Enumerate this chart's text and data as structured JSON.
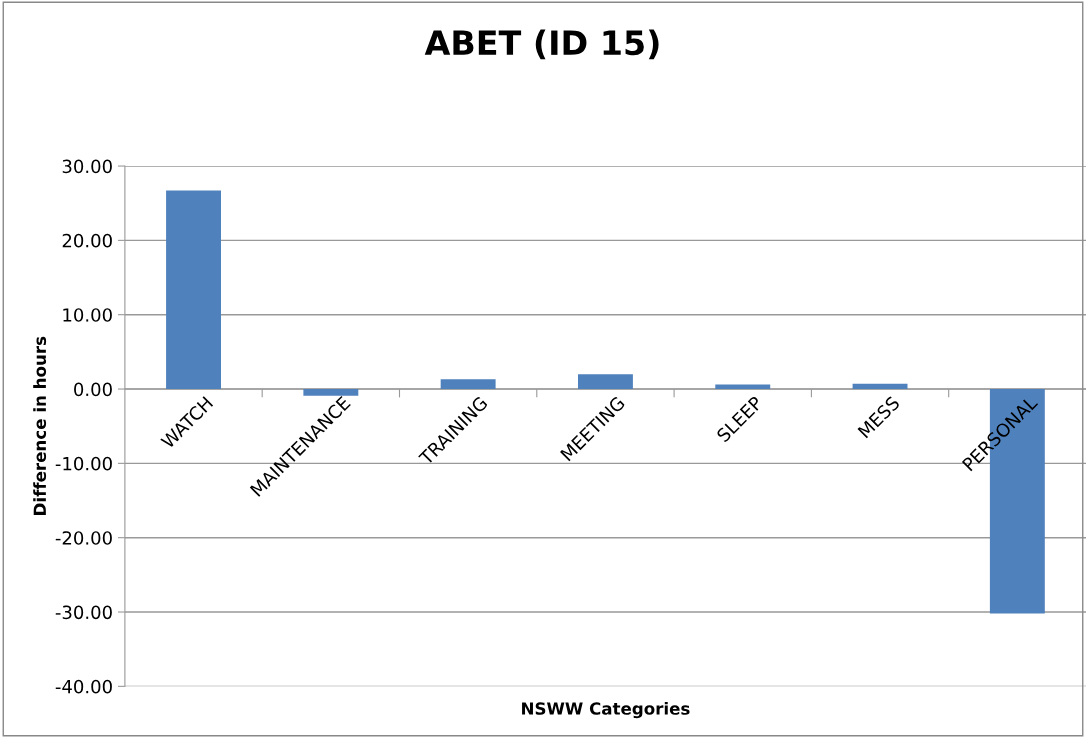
{
  "chart_data": {
    "type": "bar",
    "title": "ABET (ID 15)",
    "xlabel": "NSWW Categories",
    "ylabel": "Difference in hours",
    "categories": [
      "WATCH",
      "MAINTENANCE",
      "TRAINING",
      "MEETING",
      "SLEEP",
      "MESS",
      "PERSONAL"
    ],
    "values": [
      26.7,
      -0.9,
      1.3,
      2.0,
      0.6,
      0.7,
      -30.2
    ],
    "color": "#4f81bd",
    "ylim": [
      -40,
      30
    ],
    "yticks": [
      {
        "value": -40,
        "label": "-40.00"
      },
      {
        "value": -30,
        "label": "-30.00"
      },
      {
        "value": -20,
        "label": "-20.00"
      },
      {
        "value": -10,
        "label": "-10.00"
      },
      {
        "value": 0,
        "label": "0.00"
      },
      {
        "value": 10,
        "label": "10.00"
      },
      {
        "value": 20,
        "label": "20.00"
      },
      {
        "value": 30,
        "label": "30.00"
      }
    ],
    "grid": "y",
    "legend": false
  }
}
